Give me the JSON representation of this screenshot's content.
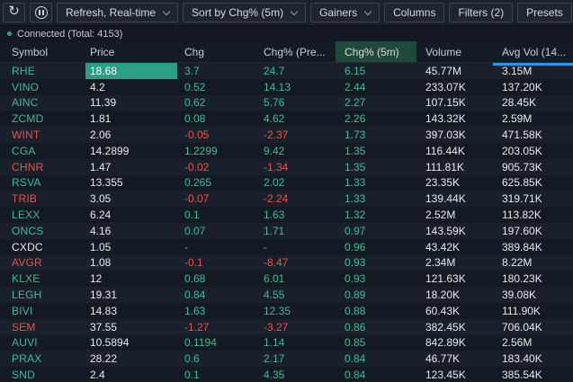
{
  "toolbar": {
    "refresh_dropdown": "Refresh, Real-time",
    "sort_dropdown": "Sort by Chg% (5m)",
    "direction_dropdown": "Gainers",
    "columns_button": "Columns",
    "filters_button": "Filters (2)",
    "presets_button": "Presets"
  },
  "status": {
    "text": "Connected (Total: 4153)"
  },
  "table": {
    "columns": [
      "Symbol",
      "Price",
      "Chg",
      "Chg% (Pre...",
      "Chg% (5m)",
      "Volume",
      "Avg Vol (14..."
    ],
    "sorted_column": "Chg% (5m)",
    "rows": [
      {
        "symbol": "RHE",
        "price": "18.68",
        "chg": "3.7",
        "chg_pre": "24.7",
        "chg_5m": "6.15",
        "volume": "45.77M",
        "avg_vol": "3.15M",
        "trend": "up",
        "price_selected": true
      },
      {
        "symbol": "VINO",
        "price": "4.2",
        "chg": "0.52",
        "chg_pre": "14.13",
        "chg_5m": "2.44",
        "volume": "233.07K",
        "avg_vol": "137.20K",
        "trend": "up"
      },
      {
        "symbol": "AINC",
        "price": "11.39",
        "chg": "0.62",
        "chg_pre": "5.76",
        "chg_5m": "2.27",
        "volume": "107.15K",
        "avg_vol": "28.45K",
        "trend": "up"
      },
      {
        "symbol": "ZCMD",
        "price": "1.81",
        "chg": "0.08",
        "chg_pre": "4.62",
        "chg_5m": "2.26",
        "volume": "143.32K",
        "avg_vol": "2.59M",
        "trend": "up"
      },
      {
        "symbol": "WINT",
        "price": "2.06",
        "chg": "-0.05",
        "chg_pre": "-2.37",
        "chg_5m": "1.73",
        "volume": "397.03K",
        "avg_vol": "471.58K",
        "trend": "down"
      },
      {
        "symbol": "CGA",
        "price": "14.2899",
        "chg": "1.2299",
        "chg_pre": "9.42",
        "chg_5m": "1.35",
        "volume": "116.44K",
        "avg_vol": "203.05K",
        "trend": "up"
      },
      {
        "symbol": "CHNR",
        "price": "1.47",
        "chg": "-0.02",
        "chg_pre": "-1.34",
        "chg_5m": "1.35",
        "volume": "111.81K",
        "avg_vol": "905.73K",
        "trend": "down"
      },
      {
        "symbol": "RSVA",
        "price": "13.355",
        "chg": "0.265",
        "chg_pre": "2.02",
        "chg_5m": "1.33",
        "volume": "23.35K",
        "avg_vol": "625.85K",
        "trend": "up"
      },
      {
        "symbol": "TRIB",
        "price": "3.05",
        "chg": "-0.07",
        "chg_pre": "-2.24",
        "chg_5m": "1.33",
        "volume": "139.44K",
        "avg_vol": "319.71K",
        "trend": "down"
      },
      {
        "symbol": "LEXX",
        "price": "6.24",
        "chg": "0.1",
        "chg_pre": "1.63",
        "chg_5m": "1.32",
        "volume": "2.52M",
        "avg_vol": "113.82K",
        "trend": "up"
      },
      {
        "symbol": "ONCS",
        "price": "4.16",
        "chg": "0.07",
        "chg_pre": "1.71",
        "chg_5m": "0.97",
        "volume": "143.59K",
        "avg_vol": "197.60K",
        "trend": "up"
      },
      {
        "symbol": "CXDC",
        "price": "1.05",
        "chg": "-",
        "chg_pre": "-",
        "chg_5m": "0.96",
        "volume": "43.42K",
        "avg_vol": "389.84K",
        "trend": "flat"
      },
      {
        "symbol": "AVGR",
        "price": "1.08",
        "chg": "-0.1",
        "chg_pre": "-8.47",
        "chg_5m": "0.93",
        "volume": "2.34M",
        "avg_vol": "8.22M",
        "trend": "down"
      },
      {
        "symbol": "KLXE",
        "price": "12",
        "chg": "0.68",
        "chg_pre": "6.01",
        "chg_5m": "0.93",
        "volume": "121.63K",
        "avg_vol": "180.23K",
        "trend": "up"
      },
      {
        "symbol": "LEGH",
        "price": "19.31",
        "chg": "0.84",
        "chg_pre": "4.55",
        "chg_5m": "0.89",
        "volume": "18.20K",
        "avg_vol": "39.08K",
        "trend": "up"
      },
      {
        "symbol": "BIVI",
        "price": "14.83",
        "chg": "1.63",
        "chg_pre": "12.35",
        "chg_5m": "0.88",
        "volume": "60.43K",
        "avg_vol": "111.90K",
        "trend": "up"
      },
      {
        "symbol": "SEM",
        "price": "37.55",
        "chg": "-1.27",
        "chg_pre": "-3.27",
        "chg_5m": "0.86",
        "volume": "382.45K",
        "avg_vol": "706.04K",
        "trend": "down"
      },
      {
        "symbol": "AUVI",
        "price": "10.5894",
        "chg": "0.1194",
        "chg_pre": "1.14",
        "chg_5m": "0.85",
        "volume": "842.89K",
        "avg_vol": "2.56M",
        "trend": "up"
      },
      {
        "symbol": "PRAX",
        "price": "28.22",
        "chg": "0.6",
        "chg_pre": "2.17",
        "chg_5m": "0.84",
        "volume": "46.77K",
        "avg_vol": "183.40K",
        "trend": "up"
      },
      {
        "symbol": "SND",
        "price": "2.4",
        "chg": "0.1",
        "chg_pre": "4.35",
        "chg_5m": "0.84",
        "volume": "123.45K",
        "avg_vol": "385.54K",
        "trend": "up"
      }
    ]
  },
  "colors": {
    "positive": "#45b896",
    "negative": "#e2544a",
    "neutral_text": "#e6e9ed",
    "selected_cell": "#2b9e83",
    "sorted_header_bg": "#1f4a3b",
    "scrollbar_thumb": "#2a97ef",
    "status_dot": "#3fa06a",
    "toolbar_bg": "#1b212b",
    "row_odd": "#1a202b",
    "row_even": "#141a24"
  }
}
